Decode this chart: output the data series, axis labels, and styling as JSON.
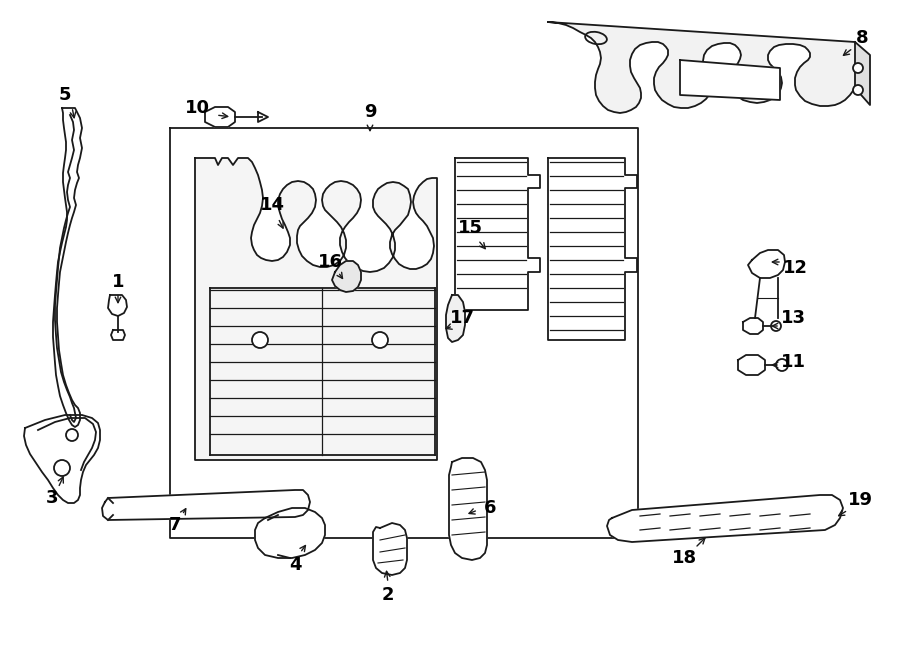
{
  "bg_color": "#ffffff",
  "lc": "#1a1a1a",
  "lw": 1.3,
  "fs": 13,
  "fw": "bold"
}
